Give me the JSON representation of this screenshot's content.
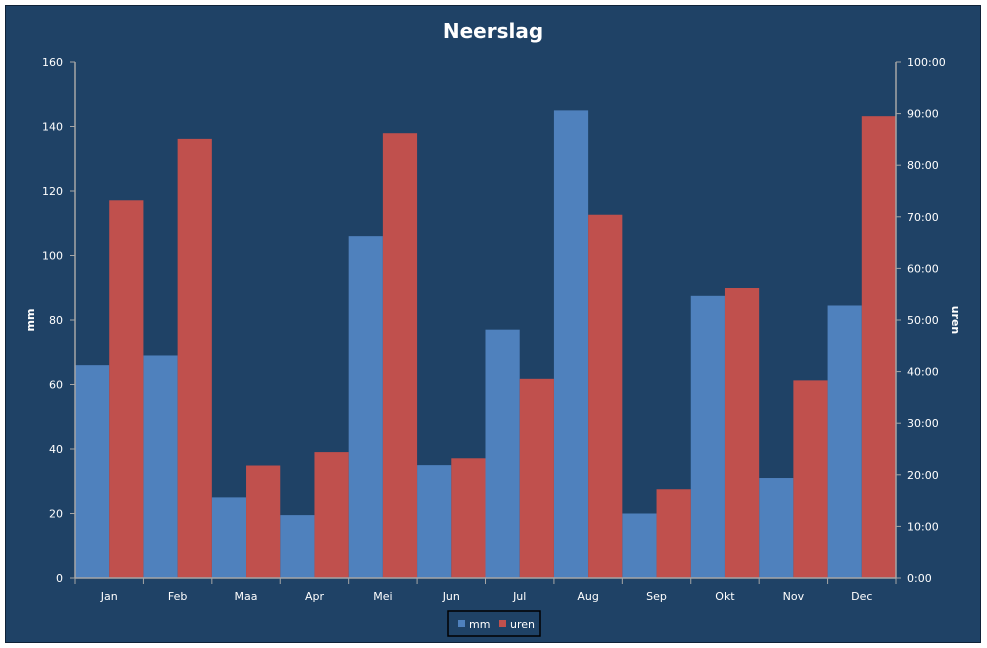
{
  "chart_data": {
    "type": "bar",
    "title": "Neerslag",
    "categories": [
      "Jan",
      "Feb",
      "Maa",
      "Apr",
      "Mei",
      "Jun",
      "Jul",
      "Aug",
      "Sep",
      "Okt",
      "Nov",
      "Dec"
    ],
    "series": [
      {
        "name": "mm",
        "axis": "left",
        "color": "#4f81bd",
        "values": [
          66,
          69,
          25,
          19.5,
          106,
          35,
          77,
          145,
          20,
          87.5,
          31,
          84.5
        ]
      },
      {
        "name": "uren",
        "axis": "right",
        "color": "#c0504d",
        "values": [
          73.2,
          85.1,
          21.8,
          24.4,
          86.2,
          23.2,
          38.6,
          70.4,
          17.2,
          56.2,
          38.3,
          89.5
        ]
      }
    ],
    "ylabel": "mm",
    "ylim": [
      0,
      160
    ],
    "yticks": [
      "0",
      "20",
      "40",
      "60",
      "80",
      "100",
      "120",
      "140",
      "160"
    ],
    "y2label": "uren",
    "y2lim": [
      0,
      100
    ],
    "y2ticks": [
      "0:00",
      "10:00",
      "20:00",
      "30:00",
      "40:00",
      "50:00",
      "60:00",
      "70:00",
      "80:00",
      "90:00",
      "100:00"
    ],
    "grid": false,
    "legend": "bottom",
    "colors": {
      "background": "#1f4266",
      "axis": "#a6a6a6",
      "text": "#ffffff"
    }
  }
}
